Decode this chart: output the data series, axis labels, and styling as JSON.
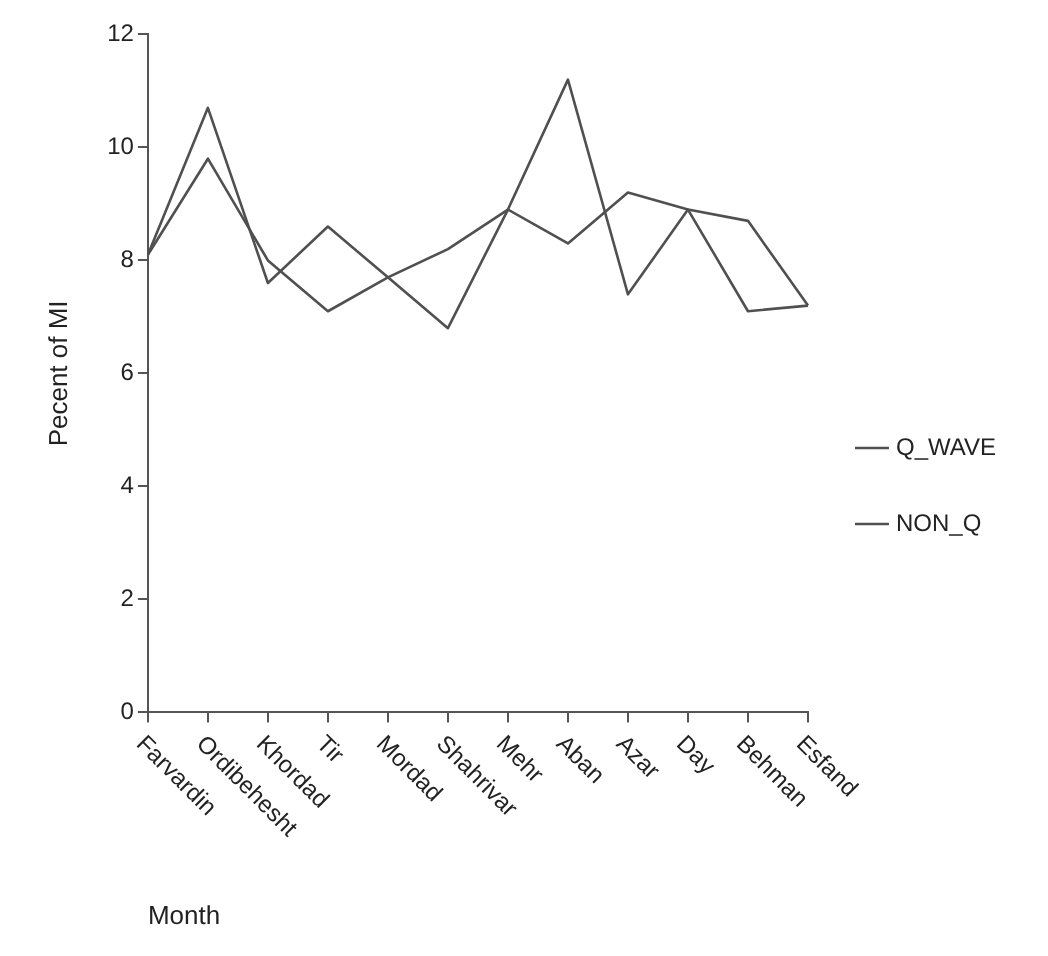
{
  "chart_data": {
    "type": "line",
    "xlabel": "Month",
    "ylabel": "Pecent of MI",
    "categories": [
      "Farvardin",
      "Ordibehesht",
      "Khordad",
      "Tir",
      "Mordad",
      "Shahrivar",
      "Mehr",
      "Aban",
      "Azar",
      "Day",
      "Behman",
      "Esfand"
    ],
    "series": [
      {
        "name": "Q_WAVE",
        "color": "#505050",
        "values": [
          8.1,
          10.7,
          7.6,
          8.6,
          7.7,
          6.8,
          8.9,
          11.2,
          7.4,
          8.9,
          7.1,
          7.2
        ]
      },
      {
        "name": "NON_Q",
        "color": "#505050",
        "values": [
          8.1,
          9.8,
          8.0,
          7.1,
          7.7,
          8.2,
          8.9,
          8.3,
          9.2,
          8.9,
          8.7,
          7.2
        ]
      }
    ],
    "ylim": [
      0,
      12
    ],
    "yticks": [
      0,
      2,
      4,
      6,
      8,
      10,
      12
    ],
    "grid": false,
    "legend": "right",
    "marker": "none",
    "line_style": "solid"
  }
}
